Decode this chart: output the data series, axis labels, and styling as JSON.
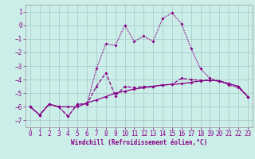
{
  "xlabel": "Windchill (Refroidissement éolien,°C)",
  "bg_color": "#cceee8",
  "grid_color": "#aacccc",
  "line_color": "#880088",
  "xlim": [
    -0.5,
    23.5
  ],
  "ylim": [
    -7.5,
    1.5
  ],
  "yticks": [
    1,
    0,
    -1,
    -2,
    -3,
    -4,
    -5,
    -6,
    -7
  ],
  "xticks": [
    0,
    1,
    2,
    3,
    4,
    5,
    6,
    7,
    8,
    9,
    10,
    11,
    12,
    13,
    14,
    15,
    16,
    17,
    18,
    19,
    20,
    21,
    22,
    23
  ],
  "series1_x": [
    0,
    1,
    2,
    3,
    4,
    5,
    6,
    7,
    8,
    9,
    10,
    11,
    12,
    13,
    14,
    15,
    16,
    17,
    18,
    19,
    20,
    21,
    22,
    23
  ],
  "series1_y": [
    -6.0,
    -6.6,
    -5.8,
    -6.0,
    -6.0,
    -6.0,
    -5.7,
    -5.5,
    -5.25,
    -5.0,
    -4.85,
    -4.7,
    -4.6,
    -4.5,
    -4.4,
    -4.35,
    -4.3,
    -4.2,
    -4.1,
    -4.05,
    -4.1,
    -4.3,
    -4.5,
    -5.25
  ],
  "series2_x": [
    0,
    1,
    2,
    3,
    4,
    5,
    6,
    7,
    8,
    9,
    10,
    11,
    12,
    13,
    14,
    15,
    16,
    17,
    18,
    19,
    20,
    21,
    22,
    23
  ],
  "series2_y": [
    -6.0,
    -6.6,
    -5.8,
    -6.0,
    -6.7,
    -5.8,
    -5.8,
    -3.2,
    -1.35,
    -1.5,
    0.0,
    -1.2,
    -0.8,
    -1.2,
    0.5,
    0.9,
    0.1,
    -1.7,
    -3.2,
    -3.9,
    -4.1,
    -4.4,
    -4.6,
    -5.25
  ],
  "series3_x": [
    0,
    1,
    2,
    3,
    4,
    5,
    6,
    7,
    8,
    9,
    10,
    11,
    12,
    13,
    14,
    15,
    16,
    17,
    18,
    19,
    20,
    21,
    22,
    23
  ],
  "series3_y": [
    -6.0,
    -6.6,
    -5.8,
    -6.0,
    -6.7,
    -5.8,
    -5.8,
    -4.5,
    -3.5,
    -5.2,
    -4.5,
    -4.6,
    -4.5,
    -4.5,
    -4.4,
    -4.35,
    -3.9,
    -4.0,
    -4.05,
    -4.05,
    -4.1,
    -4.3,
    -4.5,
    -5.25
  ]
}
